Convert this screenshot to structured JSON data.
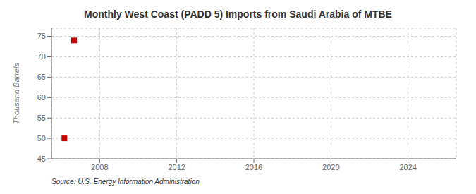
{
  "chart_data": {
    "type": "scatter",
    "title": "Monthly West Coast (PADD 5) Imports from Saudi Arabia of MTBE",
    "ylabel": "Thousand Barrels",
    "annotation": "Source: U.S. Energy Information Administration",
    "x": [
      2006.17,
      2006.67
    ],
    "values": [
      50.0,
      74.0
    ],
    "color": "#cc0000",
    "marker": "square",
    "xlim": [
      2005.5,
      2026.5
    ],
    "xticks": [
      2008,
      2012,
      2016,
      2020,
      2024
    ],
    "ylim": [
      45,
      77
    ],
    "yticks": [
      45,
      50,
      55,
      60,
      65,
      70,
      75
    ],
    "grid": true
  }
}
